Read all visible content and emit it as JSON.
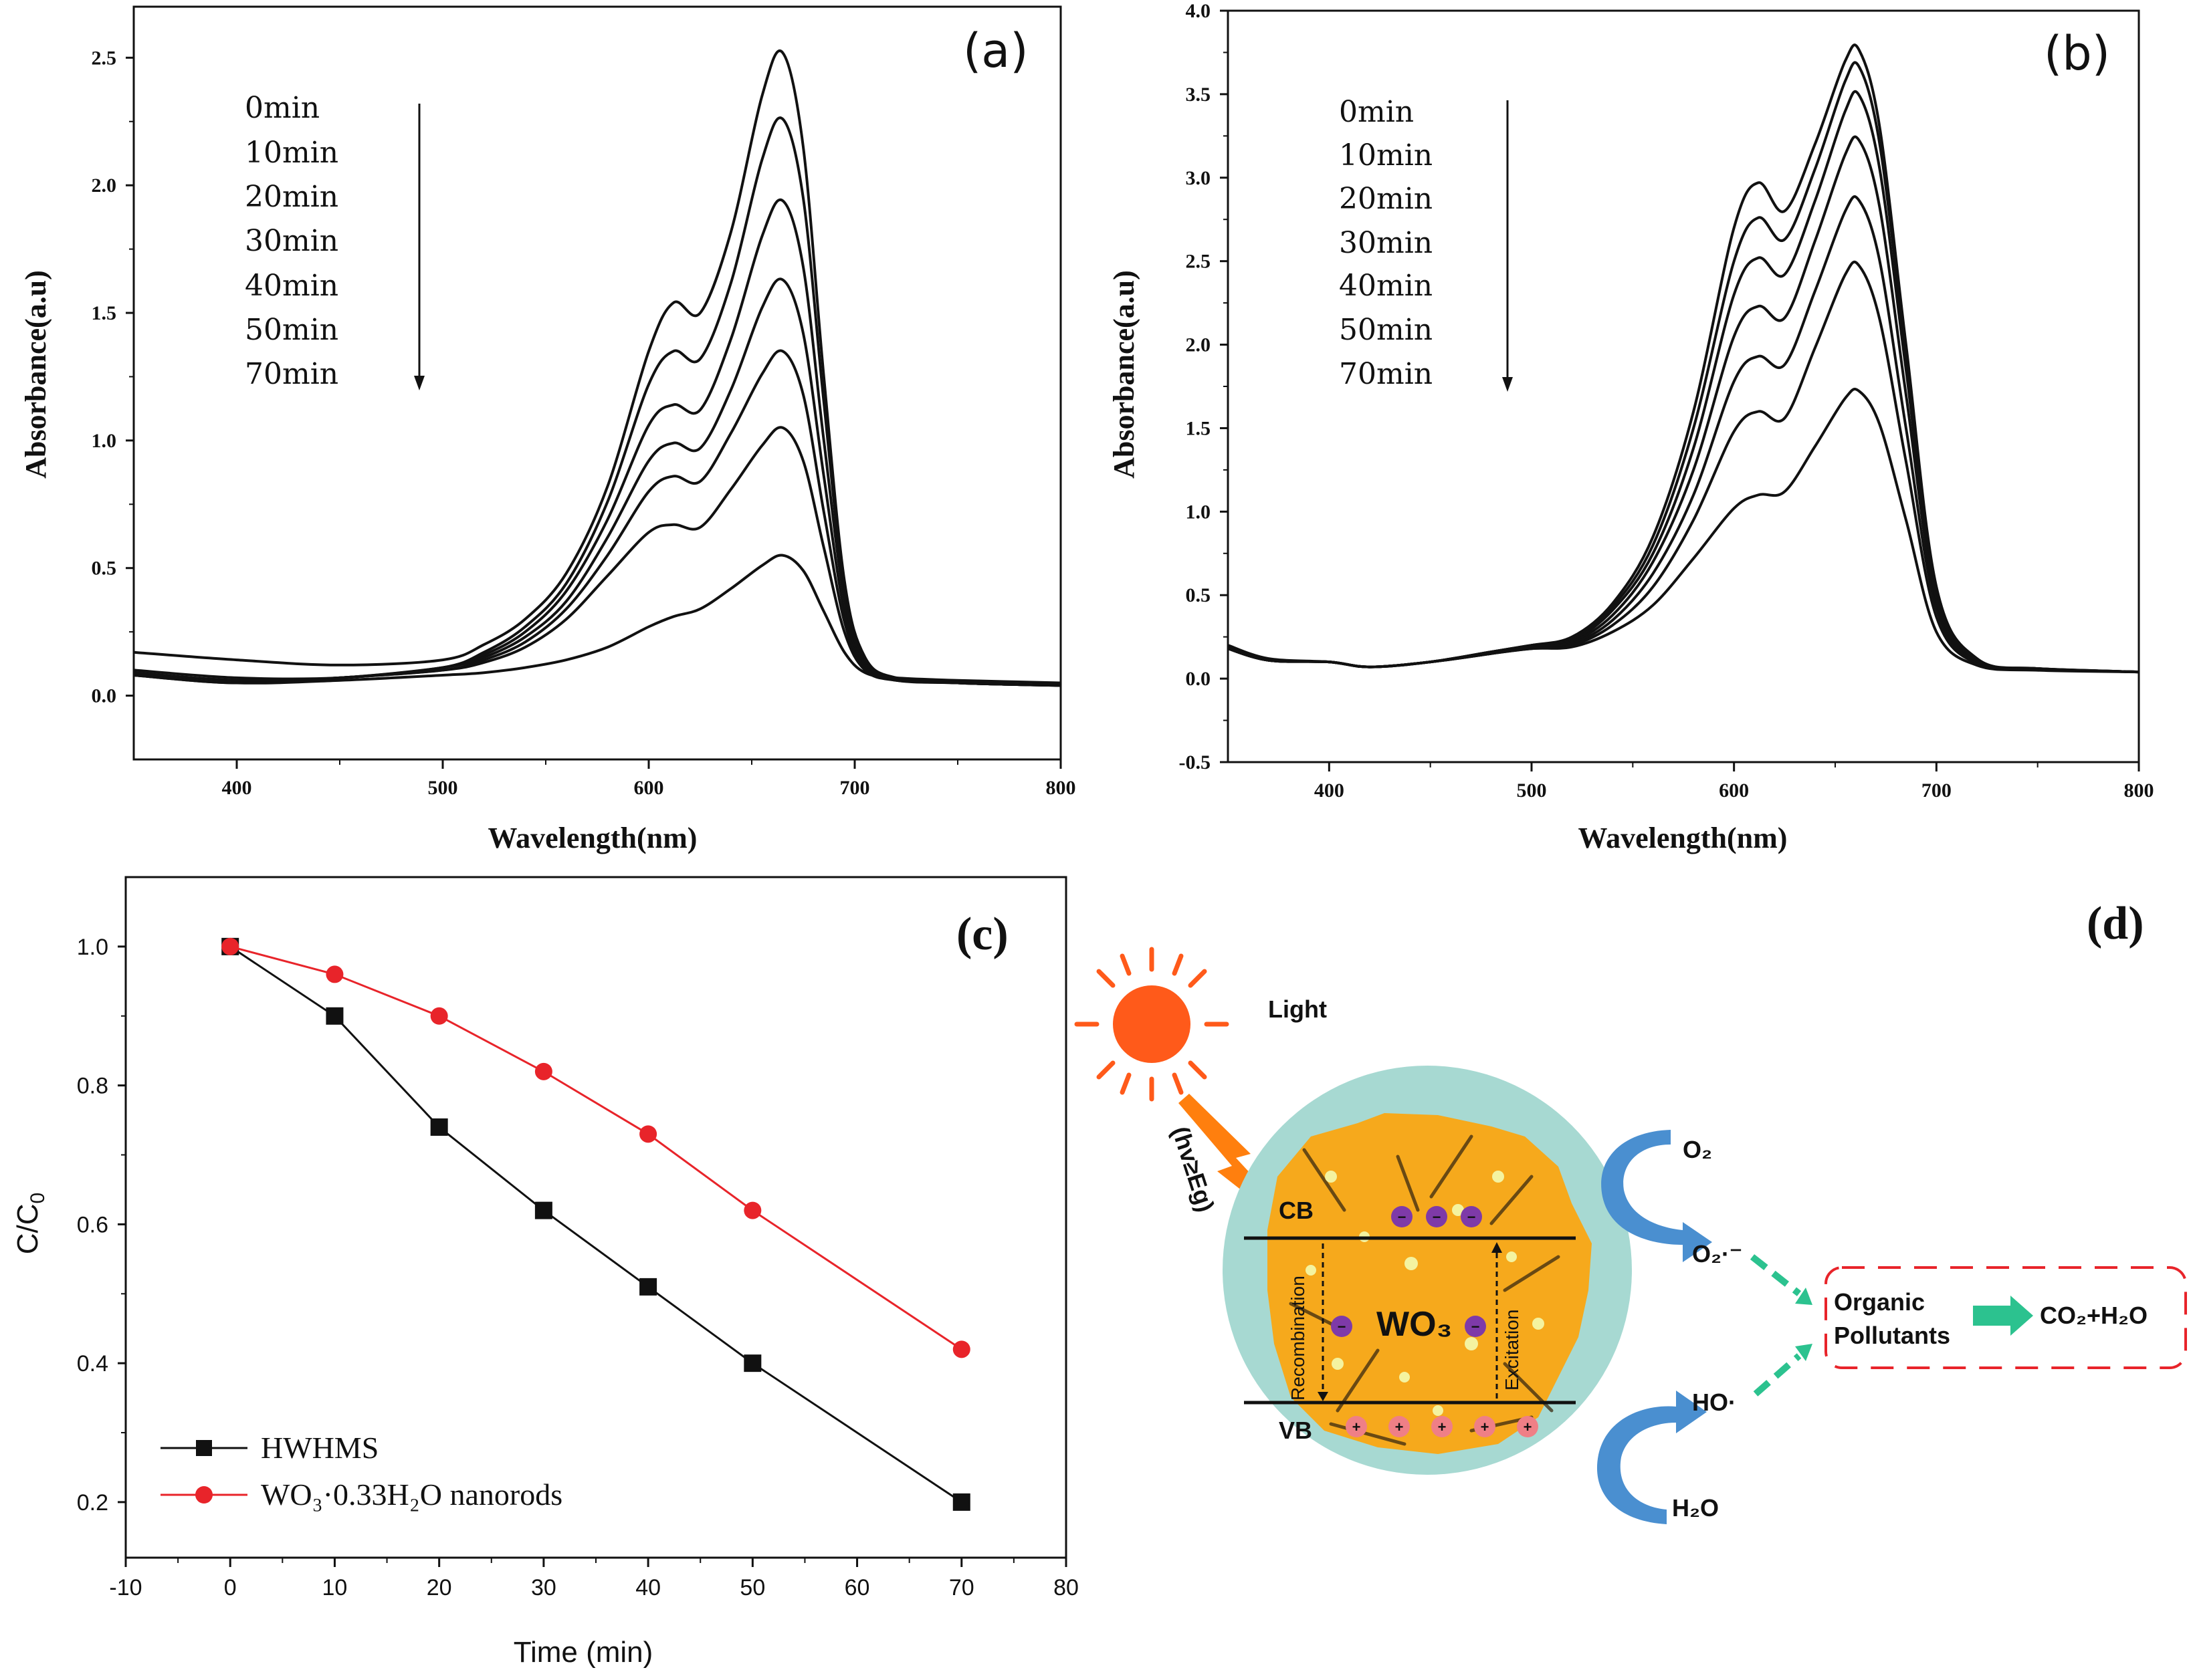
{
  "chart_data": [
    {
      "panel": "(a)",
      "type": "line",
      "xlabel": "Wavelength(nm)",
      "ylabel": "Absorbance(a.u)",
      "xlim": [
        350,
        800
      ],
      "ylim": [
        -0.25,
        2.7
      ],
      "xticks": [
        400,
        500,
        600,
        700,
        800
      ],
      "yticks": [
        0.0,
        0.5,
        1.0,
        1.5,
        2.0,
        2.5
      ],
      "legend": [
        "0min",
        "10min",
        "20min",
        "30min",
        "40min",
        "50min",
        "70min"
      ],
      "legend_arrow": "down",
      "x": [
        350,
        400,
        450,
        500,
        520,
        540,
        560,
        580,
        600,
        612,
        625,
        640,
        655,
        665,
        675,
        685,
        695,
        705,
        720,
        750,
        800
      ],
      "series": [
        {
          "name": "0min",
          "values": [
            0.17,
            0.14,
            0.12,
            0.14,
            0.2,
            0.3,
            0.48,
            0.82,
            1.35,
            1.54,
            1.5,
            1.82,
            2.35,
            2.52,
            2.15,
            1.25,
            0.45,
            0.15,
            0.07,
            0.05,
            0.04
          ]
        },
        {
          "name": "10min",
          "values": [
            0.1,
            0.07,
            0.07,
            0.11,
            0.17,
            0.27,
            0.44,
            0.76,
            1.22,
            1.35,
            1.32,
            1.62,
            2.1,
            2.26,
            1.95,
            1.15,
            0.42,
            0.14,
            0.07,
            0.05,
            0.04
          ]
        },
        {
          "name": "20min",
          "values": [
            0.09,
            0.06,
            0.07,
            0.11,
            0.16,
            0.25,
            0.41,
            0.69,
            1.06,
            1.14,
            1.12,
            1.4,
            1.8,
            1.94,
            1.68,
            1.0,
            0.38,
            0.13,
            0.07,
            0.05,
            0.04
          ]
        },
        {
          "name": "30min",
          "values": [
            0.09,
            0.06,
            0.07,
            0.11,
            0.15,
            0.23,
            0.37,
            0.62,
            0.92,
            0.99,
            0.97,
            1.2,
            1.52,
            1.63,
            1.42,
            0.86,
            0.33,
            0.12,
            0.07,
            0.05,
            0.04
          ]
        },
        {
          "name": "40min",
          "values": [
            0.08,
            0.05,
            0.07,
            0.1,
            0.14,
            0.21,
            0.34,
            0.55,
            0.8,
            0.86,
            0.84,
            1.03,
            1.26,
            1.35,
            1.18,
            0.72,
            0.29,
            0.11,
            0.06,
            0.05,
            0.04
          ]
        },
        {
          "name": "50min",
          "values": [
            0.08,
            0.05,
            0.07,
            0.1,
            0.13,
            0.19,
            0.3,
            0.47,
            0.64,
            0.67,
            0.66,
            0.81,
            0.98,
            1.05,
            0.92,
            0.58,
            0.25,
            0.1,
            0.06,
            0.05,
            0.04
          ]
        },
        {
          "name": "70min",
          "values": [
            0.08,
            0.05,
            0.06,
            0.08,
            0.09,
            0.11,
            0.14,
            0.19,
            0.27,
            0.31,
            0.34,
            0.42,
            0.51,
            0.55,
            0.49,
            0.33,
            0.17,
            0.09,
            0.07,
            0.06,
            0.05
          ]
        }
      ]
    },
    {
      "panel": "(b)",
      "type": "line",
      "xlabel": "Wavelength(nm)",
      "ylabel": "Absorbance(a.u)",
      "xlim": [
        350,
        800
      ],
      "ylim": [
        -0.5,
        4.0
      ],
      "xticks": [
        400,
        500,
        600,
        700,
        800
      ],
      "yticks": [
        -0.5,
        0.0,
        0.5,
        1.0,
        1.5,
        2.0,
        2.5,
        3.0,
        3.5,
        4.0
      ],
      "legend": [
        "0min",
        "10min",
        "20min",
        "30min",
        "40min",
        "50min",
        "70min"
      ],
      "legend_arrow": "down",
      "x": [
        350,
        370,
        400,
        420,
        450,
        480,
        500,
        520,
        540,
        560,
        580,
        600,
        612,
        625,
        640,
        655,
        662,
        672,
        685,
        700,
        720,
        750,
        800
      ],
      "series": [
        {
          "name": "0min",
          "values": [
            0.2,
            0.12,
            0.1,
            0.07,
            0.1,
            0.16,
            0.2,
            0.25,
            0.45,
            0.85,
            1.6,
            2.7,
            2.97,
            2.8,
            3.2,
            3.7,
            3.76,
            3.3,
            2.0,
            0.55,
            0.12,
            0.06,
            0.04
          ]
        },
        {
          "name": "10min",
          "values": [
            0.19,
            0.11,
            0.1,
            0.07,
            0.1,
            0.16,
            0.2,
            0.24,
            0.43,
            0.8,
            1.5,
            2.5,
            2.76,
            2.63,
            3.05,
            3.58,
            3.66,
            3.2,
            1.95,
            0.53,
            0.12,
            0.06,
            0.04
          ]
        },
        {
          "name": "20min",
          "values": [
            0.19,
            0.11,
            0.1,
            0.07,
            0.1,
            0.16,
            0.2,
            0.23,
            0.41,
            0.75,
            1.38,
            2.3,
            2.52,
            2.42,
            2.86,
            3.4,
            3.49,
            3.05,
            1.85,
            0.5,
            0.11,
            0.06,
            0.04
          ]
        },
        {
          "name": "30min",
          "values": [
            0.18,
            0.11,
            0.1,
            0.07,
            0.1,
            0.15,
            0.19,
            0.22,
            0.38,
            0.7,
            1.25,
            2.05,
            2.23,
            2.16,
            2.62,
            3.14,
            3.22,
            2.82,
            1.7,
            0.47,
            0.1,
            0.06,
            0.04
          ]
        },
        {
          "name": "40min",
          "values": [
            0.18,
            0.11,
            0.1,
            0.07,
            0.1,
            0.15,
            0.19,
            0.21,
            0.35,
            0.63,
            1.1,
            1.78,
            1.93,
            1.88,
            2.32,
            2.8,
            2.86,
            2.5,
            1.5,
            0.42,
            0.1,
            0.06,
            0.04
          ]
        },
        {
          "name": "50min",
          "values": [
            0.18,
            0.11,
            0.1,
            0.07,
            0.1,
            0.15,
            0.18,
            0.2,
            0.32,
            0.55,
            0.95,
            1.48,
            1.6,
            1.56,
            1.98,
            2.42,
            2.47,
            2.15,
            1.3,
            0.37,
            0.09,
            0.06,
            0.04
          ]
        },
        {
          "name": "70min",
          "values": [
            0.18,
            0.11,
            0.1,
            0.07,
            0.1,
            0.15,
            0.18,
            0.19,
            0.28,
            0.44,
            0.72,
            1.02,
            1.1,
            1.12,
            1.39,
            1.68,
            1.72,
            1.52,
            0.95,
            0.28,
            0.08,
            0.05,
            0.04
          ]
        }
      ]
    },
    {
      "panel": "(c)",
      "type": "line",
      "xlabel": "Time (min)",
      "ylabel": "C/C",
      "ylabel_sub": "0",
      "xlim": [
        -10,
        80
      ],
      "ylim": [
        0.12,
        1.1
      ],
      "xticks": [
        -10,
        0,
        10,
        20,
        30,
        40,
        50,
        60,
        70,
        80
      ],
      "yticks": [
        0.2,
        0.4,
        0.6,
        0.8,
        1.0
      ],
      "x": [
        0,
        10,
        20,
        30,
        40,
        50,
        70
      ],
      "series": [
        {
          "name": "HWHMS",
          "color": "#111111",
          "marker": "square",
          "values": [
            1.0,
            0.9,
            0.74,
            0.62,
            0.51,
            0.4,
            0.2
          ]
        },
        {
          "name": "WO₃·0.33H₂O nanorods",
          "color": "#e8242a",
          "marker": "circle",
          "values": [
            1.0,
            0.96,
            0.9,
            0.82,
            0.73,
            0.62,
            0.42
          ]
        }
      ]
    }
  ],
  "diagram": {
    "panel_label": "(d)",
    "light_label": "Light",
    "energy_label": "(hv≥Eg)",
    "cb_label": "CB",
    "vb_label": "VB",
    "material_label": "WO₃",
    "recombination_label": "Recombination",
    "excitation_label": "Excitation",
    "electron_sign": "−",
    "hole_sign": "+",
    "o2_label": "O₂",
    "superoxide_label": "O₂·⁻",
    "hydroxyl_label": "HO·",
    "h2o_label": "H₂O",
    "pollutant_line1": "Organic",
    "pollutant_line2": "Pollutants",
    "product_label": "CO₂+H₂O",
    "colors": {
      "sun": "#ff5a1a",
      "bolt": "#ff7f0e",
      "particle_halo": "#a7d9d2",
      "particle_core": "#f6a91c",
      "electron": "#7e3aa8",
      "hole": "#ef7f86",
      "flow_arrow": "#4a8fd0",
      "green_arrow": "#2cc28f",
      "pollutant_box": "#e8242a"
    }
  }
}
